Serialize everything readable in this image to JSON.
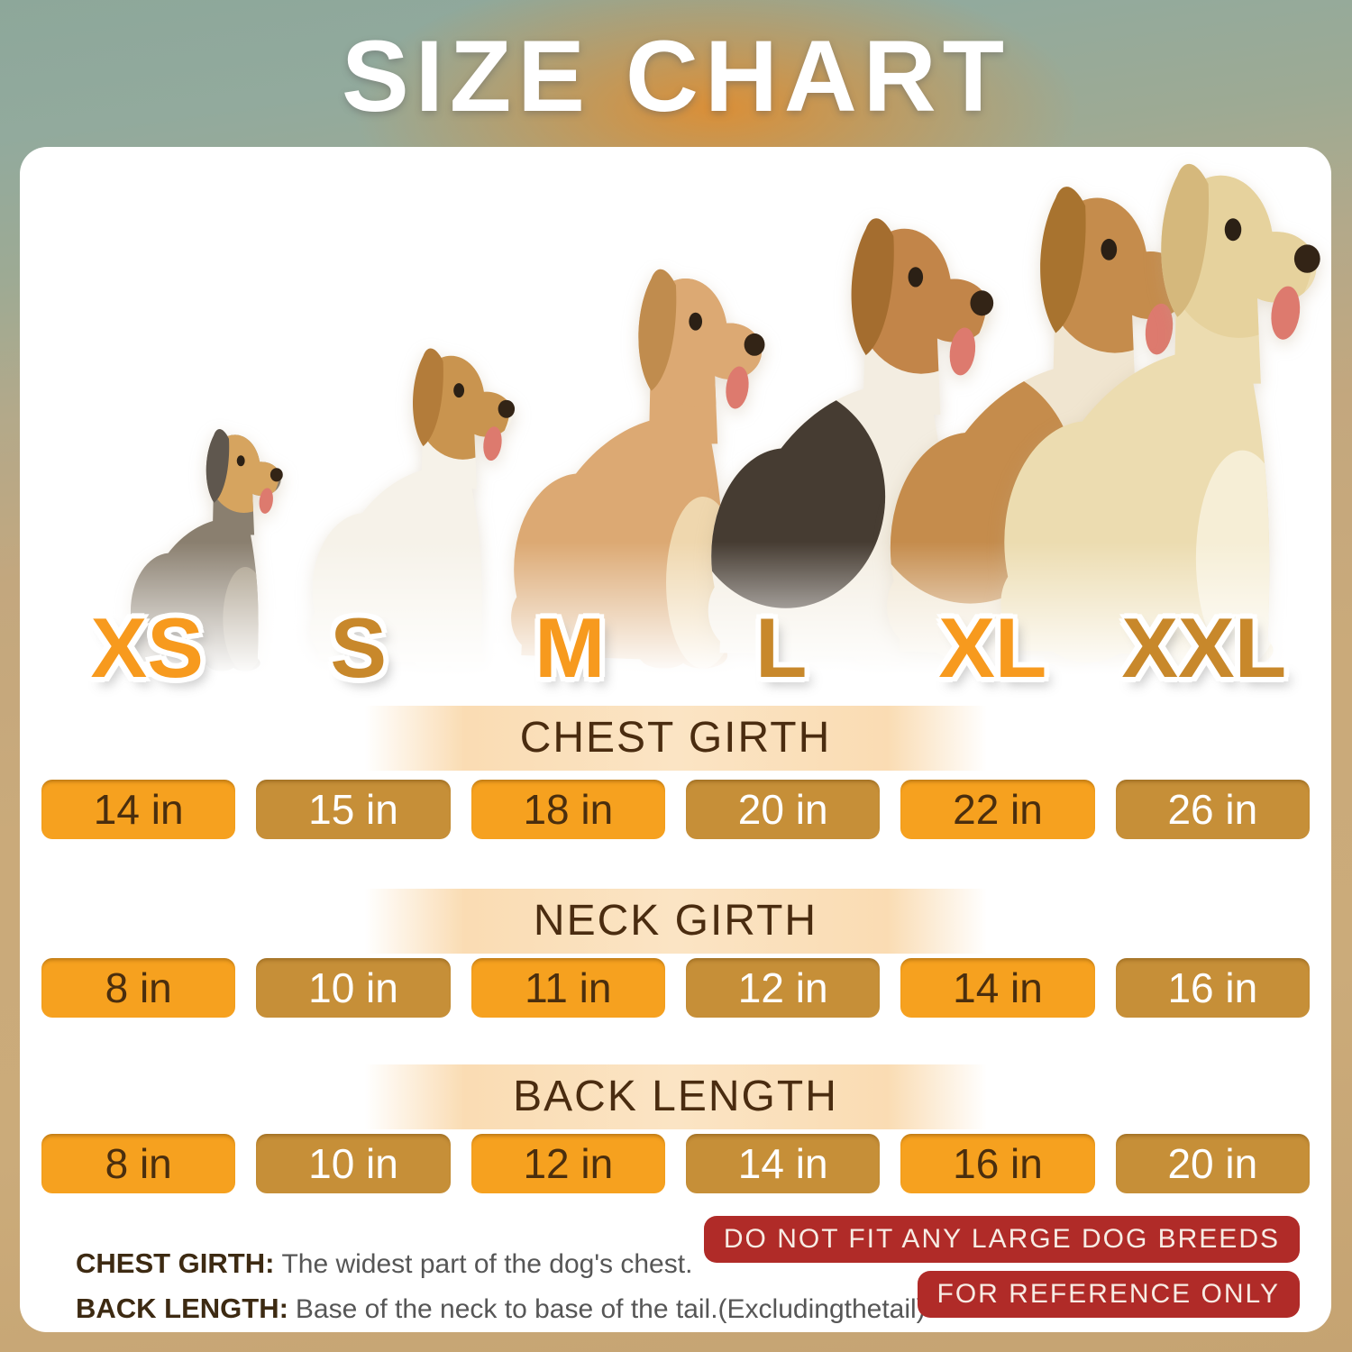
{
  "title": "SIZE CHART",
  "sizes": [
    "XS",
    "S",
    "M",
    "L",
    "XL",
    "XXL"
  ],
  "sections": [
    {
      "label": "CHEST GIRTH",
      "values": [
        "14 in",
        "15 in",
        "18 in",
        "20 in",
        "22 in",
        "26 in"
      ]
    },
    {
      "label": "NECK GIRTH",
      "values": [
        "8 in",
        "10 in",
        "11 in",
        "12 in",
        "14 in",
        "16 in"
      ]
    },
    {
      "label": "BACK LENGTH",
      "values": [
        "8 in",
        "10 in",
        "12 in",
        "14 in",
        "16 in",
        "20 in"
      ]
    }
  ],
  "notes": [
    {
      "label": "CHEST GIRTH:",
      "text": "The widest part of the dog's chest."
    },
    {
      "label": "BACK LENGTH:",
      "text": "Base of the neck to base of the tail.(Excludingthetail)"
    }
  ],
  "badges": [
    "DO NOT FIT ANY LARGE DOG BREEDS",
    "FOR REFERENCE ONLY"
  ],
  "icons": {
    "dogs": [
      "xs-dog-yorkshire-terrier-icon",
      "s-dog-jack-russell-icon",
      "m-dog-french-bulldog-icon",
      "l-dog-beagle-icon",
      "xl-dog-beagle-hound-icon",
      "xxl-dog-labrador-icon"
    ]
  },
  "colors": {
    "pill_bright": "#F6A11F",
    "pill_dark": "#C68F38",
    "size_label_bright": "#F79A1E",
    "size_label_dark": "#C8882B",
    "header_band": "#FADCB3",
    "badge_red": "#B02B28",
    "text_brown": "#4A2C10"
  },
  "chart_data": {
    "type": "table",
    "title": "SIZE CHART",
    "columns": [
      "XS",
      "S",
      "M",
      "L",
      "XL",
      "XXL"
    ],
    "unit": "in",
    "rows": [
      {
        "label": "CHEST GIRTH",
        "values_in": [
          14,
          15,
          18,
          20,
          22,
          26
        ]
      },
      {
        "label": "NECK GIRTH",
        "values_in": [
          8,
          10,
          11,
          12,
          14,
          16
        ]
      },
      {
        "label": "BACK LENGTH",
        "values_in": [
          8,
          10,
          12,
          14,
          16,
          20
        ]
      }
    ],
    "notes": [
      "CHEST GIRTH: The widest part of the dog's chest.",
      "BACK LENGTH: Base of the neck to base of the tail.(Excludingthetail)",
      "DO NOT FIT ANY LARGE DOG BREEDS",
      "FOR REFERENCE ONLY"
    ]
  }
}
